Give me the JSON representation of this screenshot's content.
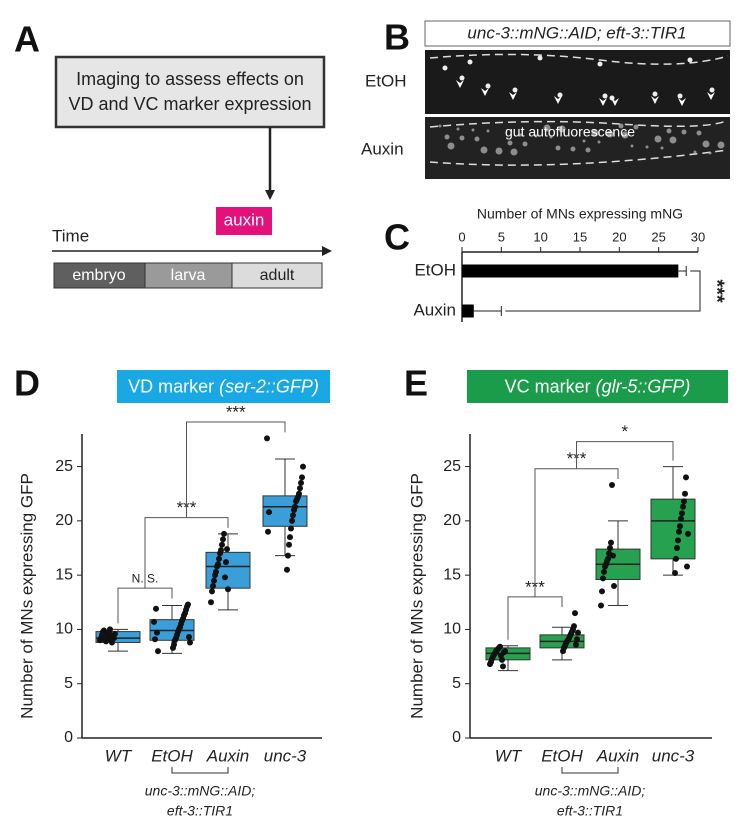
{
  "panel_labels": [
    "A",
    "B",
    "C",
    "D",
    "E"
  ],
  "timeline": {
    "box_text": [
      "Imaging to assess effects on",
      "VD and VC marker expression"
    ],
    "treatment": "auxin",
    "axis_label": "Time",
    "stages": [
      "embryo",
      "larva",
      "adult"
    ]
  },
  "imaging": {
    "genotype": "unc-3::mNG::AID; eft-3::TIR1",
    "conditions": [
      "EtOH",
      "Auxin"
    ],
    "annotation": "gut autofluorescence"
  },
  "chart_data": [
    {
      "type": "bar",
      "orientation": "horizontal",
      "title": "Number of MNs expressing mNG",
      "categories": [
        "EtOH",
        "Auxin"
      ],
      "values": [
        27.5,
        1.5
      ],
      "errors": [
        1.0,
        3.5
      ],
      "color": "#000000",
      "xlim": [
        0,
        30
      ],
      "xticks": [
        0,
        5,
        10,
        15,
        20,
        25,
        30
      ],
      "significance": "***"
    },
    {
      "type": "box",
      "title": "VD marker ",
      "title_marker": "(ser-2::GFP)",
      "title_color": "#19a8e4",
      "ylabel": "Number of MNs expressing GFP",
      "categories": [
        "WT",
        "EtOH",
        "Auxin",
        "unc-3"
      ],
      "group_label": [
        "unc-3::mNG::AID;",
        "eft-3::TIR1"
      ],
      "color": "#3a9fd8",
      "ylim": [
        0,
        28
      ],
      "yticks": [
        0,
        5,
        10,
        15,
        20,
        25
      ],
      "comparisons": [
        "N. S.",
        "***",
        "***"
      ],
      "boxes": [
        {
          "whislo": 8.0,
          "q1": 8.8,
          "med": 9.2,
          "q3": 9.8,
          "whishi": 10.0,
          "points": [
            9.0,
            9.2,
            9.5,
            9.8,
            9.9,
            9.1,
            8.9,
            9.6,
            9.3,
            9.7,
            10.0,
            9.0,
            8.8,
            9.4,
            9.2,
            9.6
          ]
        },
        {
          "whislo": 7.8,
          "q1": 9.0,
          "med": 9.9,
          "q3": 10.9,
          "whishi": 12.2,
          "points": [
            8.3,
            8.6,
            9.0,
            9.2,
            9.5,
            9.8,
            10.0,
            10.2,
            10.5,
            10.8,
            11.0,
            11.3,
            11.5,
            11.8,
            12.1,
            12.3,
            9.3,
            8.8,
            10.7,
            9.1,
            11.9,
            9.7,
            8.0
          ]
        },
        {
          "whislo": 11.8,
          "q1": 13.8,
          "med": 15.8,
          "q3": 17.1,
          "whishi": 18.8,
          "points": [
            12.5,
            13.5,
            14.0,
            14.5,
            15.0,
            15.3,
            15.8,
            16.0,
            16.5,
            17.0,
            17.3,
            17.8,
            18.3,
            18.8,
            14.8,
            16.2,
            17.4,
            13.7
          ]
        },
        {
          "whislo": 16.8,
          "q1": 19.5,
          "med": 21.3,
          "q3": 22.3,
          "whishi": 25.7,
          "points": [
            15.5,
            16.8,
            17.8,
            18.5,
            19.3,
            20.0,
            20.5,
            21.0,
            21.3,
            21.8,
            22.0,
            22.2,
            22.5,
            23.0,
            23.5,
            24.0,
            25.0,
            27.6,
            19.0,
            20.8
          ]
        }
      ]
    },
    {
      "type": "box",
      "title": "VC marker ",
      "title_marker": "(glr-5::GFP)",
      "title_color": "#1a9c4b",
      "ylabel": "Number of MNs expressing GFP",
      "categories": [
        "WT",
        "EtOH",
        "Auxin",
        "unc-3"
      ],
      "group_label": [
        "unc-3::mNG::AID;",
        "eft-3::TIR1"
      ],
      "color": "#25a150",
      "ylim": [
        0,
        28
      ],
      "yticks": [
        0,
        5,
        10,
        15,
        20,
        25
      ],
      "comparisons": [
        "***",
        "***",
        "*"
      ],
      "boxes": [
        {
          "whislo": 6.2,
          "q1": 7.2,
          "med": 7.8,
          "q3": 8.3,
          "whishi": 8.5,
          "points": [
            6.8,
            7.0,
            7.3,
            7.5,
            7.7,
            7.8,
            8.0,
            8.1,
            8.2,
            8.3,
            8.4,
            7.6,
            7.2,
            6.6,
            7.9,
            8.0
          ]
        },
        {
          "whislo": 7.2,
          "q1": 8.3,
          "med": 8.9,
          "q3": 9.5,
          "whishi": 10.2,
          "points": [
            8.0,
            8.3,
            8.5,
            8.7,
            8.9,
            9.0,
            9.2,
            9.4,
            9.6,
            9.8,
            10.0,
            10.3,
            11.5,
            8.6,
            9.1,
            9.7
          ]
        },
        {
          "whislo": 12.2,
          "q1": 14.6,
          "med": 16.0,
          "q3": 17.4,
          "whishi": 20.0,
          "points": [
            12.2,
            13.5,
            14.7,
            15.3,
            15.8,
            16.0,
            16.3,
            16.5,
            17.0,
            17.5,
            18.0,
            23.3,
            16.8,
            14.0
          ]
        },
        {
          "whislo": 15.0,
          "q1": 16.5,
          "med": 20.0,
          "q3": 22.0,
          "whishi": 25.0,
          "points": [
            15.2,
            16.5,
            17.5,
            18.2,
            19.0,
            19.5,
            20.2,
            20.7,
            21.3,
            21.8,
            22.5,
            24.0,
            15.8,
            18.8
          ]
        }
      ]
    }
  ]
}
